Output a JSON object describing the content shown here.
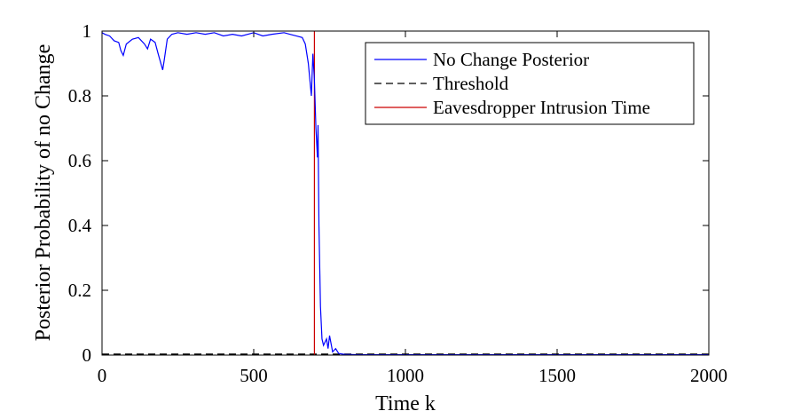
{
  "chart_data": {
    "type": "line",
    "title": "",
    "xlabel": "Time k",
    "ylabel": "Posterior Probability of no Change",
    "xlim": [
      0,
      2000
    ],
    "ylim": [
      0,
      1
    ],
    "xticks": [
      0,
      500,
      1000,
      1500,
      2000
    ],
    "yticks": [
      0,
      0.2,
      0.4,
      0.6,
      0.8,
      1
    ],
    "xtick_labels": [
      "0",
      "500",
      "1000",
      "1500",
      "2000"
    ],
    "ytick_labels": [
      "0",
      "0.2",
      "0.4",
      "0.6",
      "0.8",
      "1"
    ],
    "grid": false,
    "legend_position": "top-right",
    "series": [
      {
        "name": "No Change Posterior",
        "color": "#0000ff",
        "style": "solid",
        "x": [
          0,
          10,
          25,
          40,
          55,
          62,
          70,
          80,
          100,
          120,
          140,
          150,
          160,
          175,
          185,
          200,
          205,
          215,
          230,
          250,
          280,
          310,
          340,
          370,
          400,
          430,
          460,
          500,
          530,
          560,
          600,
          620,
          640,
          660,
          670,
          680,
          690,
          695,
          700,
          705,
          710,
          712,
          715,
          720,
          725,
          730,
          740,
          745,
          750,
          760,
          770,
          780,
          800,
          850,
          900,
          1000,
          1200,
          1400,
          1600,
          1800,
          2000
        ],
        "y": [
          0.995,
          0.99,
          0.985,
          0.97,
          0.965,
          0.94,
          0.925,
          0.96,
          0.975,
          0.98,
          0.96,
          0.945,
          0.975,
          0.965,
          0.93,
          0.88,
          0.91,
          0.975,
          0.99,
          0.995,
          0.99,
          0.995,
          0.99,
          0.995,
          0.985,
          0.99,
          0.985,
          0.995,
          0.985,
          0.99,
          0.995,
          0.99,
          0.985,
          0.98,
          0.96,
          0.9,
          0.8,
          0.93,
          0.85,
          0.7,
          0.61,
          0.71,
          0.4,
          0.15,
          0.05,
          0.03,
          0.05,
          0.02,
          0.06,
          0.01,
          0.02,
          0.005,
          0.002,
          0.001,
          0.001,
          0.001,
          0.001,
          0.001,
          0.001,
          0.001,
          0.001
        ]
      },
      {
        "name": "Threshold",
        "color": "#000000",
        "style": "dashed",
        "x": [
          0,
          2000
        ],
        "y": [
          0.003,
          0.003
        ]
      },
      {
        "name": "Eavesdropper Intrusion Time",
        "color": "#cc0000",
        "style": "solid",
        "x": [
          700,
          700
        ],
        "y": [
          0,
          1
        ]
      }
    ]
  }
}
